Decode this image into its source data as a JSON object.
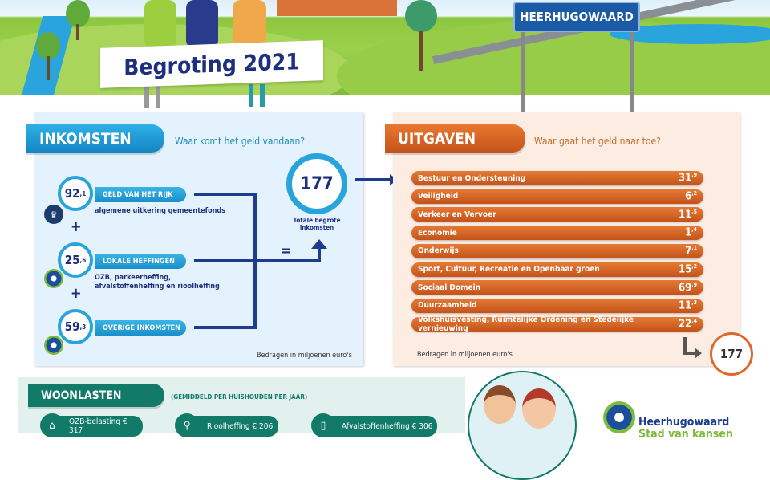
{
  "header": {
    "title": "Begroting 2021",
    "town_sign": "HEERHUGOWAARD"
  },
  "income": {
    "title": "INKOMSTEN",
    "subtitle": "Waar komt het geld vandaan?",
    "items": [
      {
        "int": "92",
        "dec": ",1",
        "label": "GELD VAN HET RIJK",
        "desc": "algemene uitkering gemeentefonds",
        "icon": "crown-emblem-icon"
      },
      {
        "int": "25",
        "dec": ",6",
        "label": "LOKALE HEFFINGEN",
        "desc": "OZB, parkeerheffing, afvalstoffenheffing en rioolheffing",
        "icon": "municipality-logo-icon"
      },
      {
        "int": "59",
        "dec": ",3",
        "label": "OVERIGE INKOMSTEN",
        "desc": "",
        "icon": "municipality-logo-icon"
      }
    ],
    "plus": "+",
    "equals": "=",
    "total": "177",
    "total_label": "Totale begrote inkomsten",
    "note": "Bedragen in miljoenen euro's"
  },
  "expenses": {
    "title": "UITGAVEN",
    "subtitle": "Waar gaat het geld naar toe?",
    "items": [
      {
        "label": "Bestuur en Ondersteuning",
        "int": "31",
        "dec": ",9"
      },
      {
        "label": "Veiligheid",
        "int": "6",
        "dec": ",2"
      },
      {
        "label": "Verkeer en Vervoer",
        "int": "11",
        "dec": ",5"
      },
      {
        "label": "Economie",
        "int": "1",
        "dec": ",4"
      },
      {
        "label": "Onderwijs",
        "int": "7",
        "dec": ",1"
      },
      {
        "label": "Sport, Cultuur, Recreatie en Openbaar groen",
        "int": "15",
        "dec": ",2"
      },
      {
        "label": "Sociaal Domein",
        "int": "69",
        "dec": ",9"
      },
      {
        "label": "Duurzaamheid",
        "int": "11",
        "dec": ",3"
      },
      {
        "label": "Volkshuisvesting, Ruimtelijke Ordening en Stedelijke vernieuwing",
        "int": "22",
        "dec": ",4"
      }
    ],
    "total": "177",
    "note": "Bedragen in miljoenen euro's"
  },
  "woonlasten": {
    "title": "WOONLASTEN",
    "subtitle": "(GEMIDDELD PER HUISHOUDEN PER JAAR)",
    "items": [
      {
        "label": "OZB-belasting € 317",
        "icon": "house-icon"
      },
      {
        "label": "Rioolheffing € 206",
        "icon": "sewer-icon"
      },
      {
        "label": "Afvalstoffenheffing € 306",
        "icon": "waste-bin-icon"
      }
    ]
  },
  "logo": {
    "name": "Heerhugowaard",
    "tagline": "Stad van kansen"
  },
  "colors": {
    "blue": "#1a8fca",
    "navy": "#1d2f7e",
    "orange": "#d4621f",
    "teal": "#127a68"
  }
}
